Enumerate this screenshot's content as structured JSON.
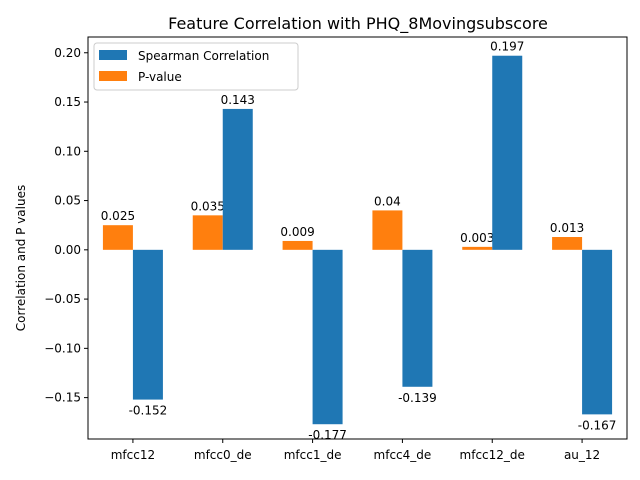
{
  "chart_data": {
    "type": "bar",
    "title": "Feature Correlation with PHQ_8Movingsubscore",
    "xlabel": "",
    "ylabel": "Correlation and P values",
    "categories": [
      "mfcc12",
      "mfcc0_de",
      "mfcc1_de",
      "mfcc4_de",
      "mfcc12_de",
      "au_12"
    ],
    "series": [
      {
        "name": "P-value",
        "color": "#ff7f0e",
        "values": [
          0.025,
          0.035,
          0.009,
          0.04,
          0.003,
          0.013
        ],
        "labels": [
          "0.025",
          "0.035",
          "0.009",
          "0.04",
          "0.003",
          "0.013"
        ]
      },
      {
        "name": "Spearman Correlation",
        "color": "#1f77b4",
        "values": [
          -0.152,
          0.143,
          -0.177,
          -0.139,
          0.197,
          -0.167
        ],
        "labels": [
          "-0.152",
          "0.143",
          "-0.177",
          "-0.139",
          "0.197",
          "-0.167"
        ]
      }
    ],
    "legend_order": [
      "Spearman Correlation",
      "P-value"
    ],
    "legend_position": "top-left",
    "ylim": [
      -0.192,
      0.216
    ],
    "yticks": [
      -0.15,
      -0.1,
      -0.05,
      0.0,
      0.05,
      0.1,
      0.15,
      0.2
    ],
    "ytick_labels": [
      "−0.15",
      "−0.10",
      "−0.05",
      "0.00",
      "0.05",
      "0.10",
      "0.15",
      "0.20"
    ],
    "grid": false
  }
}
